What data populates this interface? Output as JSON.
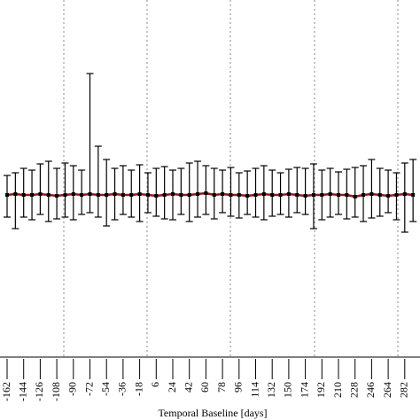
{
  "chart_data": {
    "type": "errorbar",
    "xlabel": "Temporal Baseline [days]",
    "categories": [
      "-162",
      null,
      "-144",
      null,
      "-126",
      null,
      "-108",
      null,
      "-90",
      null,
      "-72",
      null,
      "-54",
      null,
      "-36",
      null,
      "-18",
      null,
      "6",
      null,
      "24",
      null,
      "42",
      null,
      "60",
      null,
      "78",
      null,
      "96",
      null,
      "114",
      null,
      "132",
      null,
      "150",
      null,
      "174",
      null,
      "192",
      null,
      "210",
      null,
      "228",
      null,
      "246",
      null,
      "264",
      null,
      "282",
      null
    ],
    "series": [
      {
        "color": "#8b1a1a",
        "marker_color": "#000000",
        "values": [
          0.0,
          0.01,
          0.0,
          0.0,
          0.01,
          0.0,
          -0.01,
          0.0,
          0.01,
          0.0,
          0.01,
          0.0,
          0.0,
          0.01,
          0.0,
          0.0,
          0.01,
          0.0,
          -0.01,
          0.0,
          0.01,
          0.0,
          0.0,
          0.01,
          0.02,
          0.0,
          0.01,
          0.0,
          0.0,
          -0.01,
          0.0,
          0.01,
          0.0,
          0.0,
          0.01,
          0.0,
          -0.01,
          0.0,
          0.0,
          0.01,
          0.0,
          0.0,
          -0.02,
          0.0,
          0.01,
          0.0,
          -0.01,
          0.0,
          0.01,
          0.0
        ],
        "upper": [
          0.22,
          0.25,
          0.3,
          0.28,
          0.35,
          0.38,
          0.3,
          0.36,
          0.33,
          0.28,
          1.37,
          0.55,
          0.4,
          0.3,
          0.33,
          0.28,
          0.34,
          0.25,
          0.3,
          0.32,
          0.28,
          0.3,
          0.36,
          0.38,
          0.33,
          0.3,
          0.28,
          0.31,
          0.25,
          0.27,
          0.3,
          0.33,
          0.28,
          0.25,
          0.29,
          0.31,
          0.3,
          0.35,
          0.28,
          0.3,
          0.26,
          0.29,
          0.31,
          0.33,
          0.4,
          0.3,
          0.28,
          0.25,
          0.36,
          0.4
        ],
        "lower": [
          -0.25,
          -0.38,
          -0.25,
          -0.28,
          -0.22,
          -0.3,
          -0.27,
          -0.25,
          -0.28,
          -0.22,
          -0.2,
          -0.25,
          -0.35,
          -0.28,
          -0.22,
          -0.25,
          -0.3,
          -0.2,
          -0.24,
          -0.27,
          -0.28,
          -0.22,
          -0.3,
          -0.25,
          -0.22,
          -0.27,
          -0.2,
          -0.24,
          -0.26,
          -0.22,
          -0.25,
          -0.28,
          -0.24,
          -0.22,
          -0.25,
          -0.2,
          -0.22,
          -0.38,
          -0.28,
          -0.25,
          -0.22,
          -0.27,
          -0.25,
          -0.3,
          -0.26,
          -0.24,
          -0.2,
          -0.28,
          -0.42,
          -0.3
        ]
      }
    ],
    "ylim": [
      -1.83,
      2.2
    ]
  }
}
